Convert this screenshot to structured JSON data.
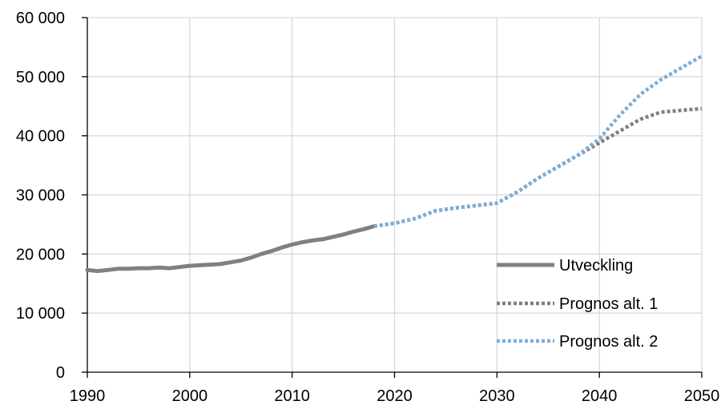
{
  "chart_data": {
    "type": "line",
    "title": "",
    "xlabel": "",
    "ylabel": "",
    "xlim": [
      1990,
      2050
    ],
    "ylim": [
      0,
      60000
    ],
    "x_ticks": [
      1990,
      2000,
      2010,
      2020,
      2030,
      2040,
      2050
    ],
    "x_tick_labels": [
      "1990",
      "2000",
      "2010",
      "2020",
      "2030",
      "2040",
      "2050"
    ],
    "y_ticks": [
      0,
      10000,
      20000,
      30000,
      40000,
      50000,
      60000
    ],
    "y_tick_labels": [
      "0",
      "10 000",
      "20 000",
      "30 000",
      "40 000",
      "50 000",
      "60 000"
    ],
    "grid": true,
    "legend_position": "bottom-right",
    "series": [
      {
        "name": "Utveckling",
        "style": "solid",
        "color": "#808080",
        "points": [
          [
            1990,
            17300
          ],
          [
            1991,
            17100
          ],
          [
            1992,
            17300
          ],
          [
            1993,
            17500
          ],
          [
            1994,
            17500
          ],
          [
            1995,
            17600
          ],
          [
            1996,
            17600
          ],
          [
            1997,
            17700
          ],
          [
            1998,
            17600
          ],
          [
            1999,
            17800
          ],
          [
            2000,
            18000
          ],
          [
            2001,
            18100
          ],
          [
            2002,
            18200
          ],
          [
            2003,
            18300
          ],
          [
            2004,
            18600
          ],
          [
            2005,
            18900
          ],
          [
            2006,
            19400
          ],
          [
            2007,
            20000
          ],
          [
            2008,
            20500
          ],
          [
            2009,
            21100
          ],
          [
            2010,
            21600
          ],
          [
            2011,
            22000
          ],
          [
            2012,
            22300
          ],
          [
            2013,
            22500
          ],
          [
            2014,
            22900
          ],
          [
            2015,
            23300
          ],
          [
            2016,
            23800
          ],
          [
            2017,
            24200
          ],
          [
            2018,
            24700
          ]
        ]
      },
      {
        "name": "Prognos alt. 1",
        "style": "dotted",
        "color": "#808080",
        "points": [
          [
            2018,
            24700
          ],
          [
            2020,
            25200
          ],
          [
            2022,
            26000
          ],
          [
            2024,
            27300
          ],
          [
            2026,
            27800
          ],
          [
            2028,
            28200
          ],
          [
            2030,
            28600
          ],
          [
            2032,
            30500
          ],
          [
            2034,
            32800
          ],
          [
            2036,
            34800
          ],
          [
            2038,
            36800
          ],
          [
            2040,
            38800
          ],
          [
            2042,
            40800
          ],
          [
            2044,
            42800
          ],
          [
            2046,
            44000
          ],
          [
            2048,
            44300
          ],
          [
            2050,
            44600
          ]
        ]
      },
      {
        "name": "Prognos alt. 2",
        "style": "dotted",
        "color": "#7eaed6",
        "points": [
          [
            2018,
            24700
          ],
          [
            2020,
            25200
          ],
          [
            2022,
            26000
          ],
          [
            2024,
            27300
          ],
          [
            2026,
            27800
          ],
          [
            2028,
            28200
          ],
          [
            2030,
            28600
          ],
          [
            2032,
            30500
          ],
          [
            2034,
            32800
          ],
          [
            2036,
            34800
          ],
          [
            2038,
            36800
          ],
          [
            2040,
            39500
          ],
          [
            2042,
            43500
          ],
          [
            2044,
            47000
          ],
          [
            2046,
            49500
          ],
          [
            2048,
            51500
          ],
          [
            2050,
            53500
          ]
        ]
      }
    ]
  }
}
